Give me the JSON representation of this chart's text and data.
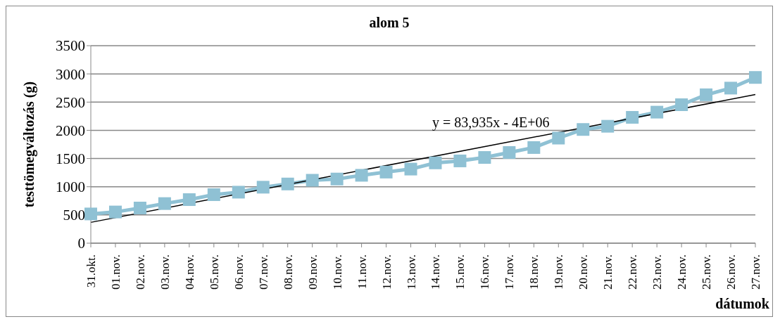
{
  "chart_data": {
    "type": "line",
    "title": "alom 5",
    "xlabel": "dátumok",
    "ylabel": "testtömegváltozás (g)",
    "categories": [
      "31.okt.",
      "01.nov.",
      "02.nov.",
      "03.nov.",
      "04.nov.",
      "05.nov.",
      "06.nov.",
      "07.nov.",
      "08.nov.",
      "09.nov.",
      "10.nov.",
      "11.nov.",
      "12.nov.",
      "13.nov.",
      "14.nov.",
      "15.nov.",
      "16.nov.",
      "17.nov.",
      "18.nov.",
      "19.nov.",
      "20.nov.",
      "21.nov.",
      "22.nov.",
      "23.nov.",
      "24.nov.",
      "25.nov.",
      "26.nov.",
      "27.nov."
    ],
    "series": [
      {
        "color": "#8fc1d4",
        "values": [
          518,
          553,
          623,
          702,
          772,
          860,
          904,
          992,
          1049,
          1115,
          1137,
          1203,
          1260,
          1313,
          1423,
          1458,
          1519,
          1607,
          1695,
          1862,
          2015,
          2072,
          2230,
          2322,
          2454,
          2630,
          2748,
          2937
        ]
      },
      {
        "type": "line",
        "color": "#000000",
        "marker": "none",
        "values": [
          369,
          null,
          null,
          null,
          null,
          null,
          null,
          null,
          null,
          null,
          null,
          null,
          null,
          null,
          null,
          null,
          null,
          null,
          null,
          null,
          null,
          null,
          null,
          null,
          null,
          null,
          null,
          2634
        ]
      }
    ],
    "annotations": [
      "y = 83,935x - 4E+06"
    ],
    "ylim": [
      0,
      3500
    ],
    "yticks": [
      0,
      500,
      1000,
      1500,
      2000,
      2500,
      3000,
      3500
    ],
    "grid": "y",
    "legend": false,
    "marker": "square"
  }
}
